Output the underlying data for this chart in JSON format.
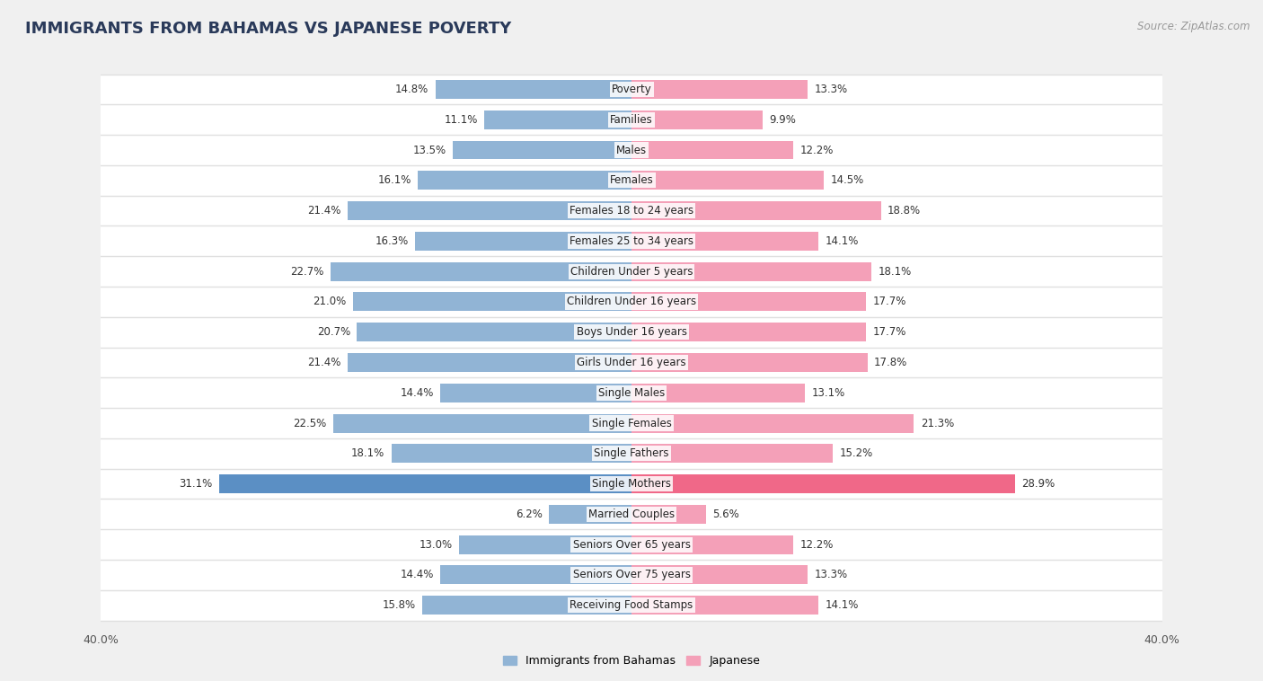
{
  "title": "IMMIGRANTS FROM BAHAMAS VS JAPANESE POVERTY",
  "source": "Source: ZipAtlas.com",
  "categories": [
    "Poverty",
    "Families",
    "Males",
    "Females",
    "Females 18 to 24 years",
    "Females 25 to 34 years",
    "Children Under 5 years",
    "Children Under 16 years",
    "Boys Under 16 years",
    "Girls Under 16 years",
    "Single Males",
    "Single Females",
    "Single Fathers",
    "Single Mothers",
    "Married Couples",
    "Seniors Over 65 years",
    "Seniors Over 75 years",
    "Receiving Food Stamps"
  ],
  "bahamas_values": [
    14.8,
    11.1,
    13.5,
    16.1,
    21.4,
    16.3,
    22.7,
    21.0,
    20.7,
    21.4,
    14.4,
    22.5,
    18.1,
    31.1,
    6.2,
    13.0,
    14.4,
    15.8
  ],
  "japanese_values": [
    13.3,
    9.9,
    12.2,
    14.5,
    18.8,
    14.1,
    18.1,
    17.7,
    17.7,
    17.8,
    13.1,
    21.3,
    15.2,
    28.9,
    5.6,
    12.2,
    13.3,
    14.1
  ],
  "bahamas_color": "#91b4d5",
  "japanese_color": "#f4a0b8",
  "bahamas_highlight_color": "#5b8fc4",
  "japanese_highlight_color": "#f06888",
  "highlight_rows": [
    13
  ],
  "xlim": 40.0,
  "background_color": "#f0f0f0",
  "row_bg_color": "#ffffff",
  "sep_color": "#e0e0e0",
  "title_color": "#2a3a5a",
  "title_fontsize": 13,
  "label_fontsize": 8.5,
  "value_fontsize": 8.5,
  "legend_fontsize": 9
}
